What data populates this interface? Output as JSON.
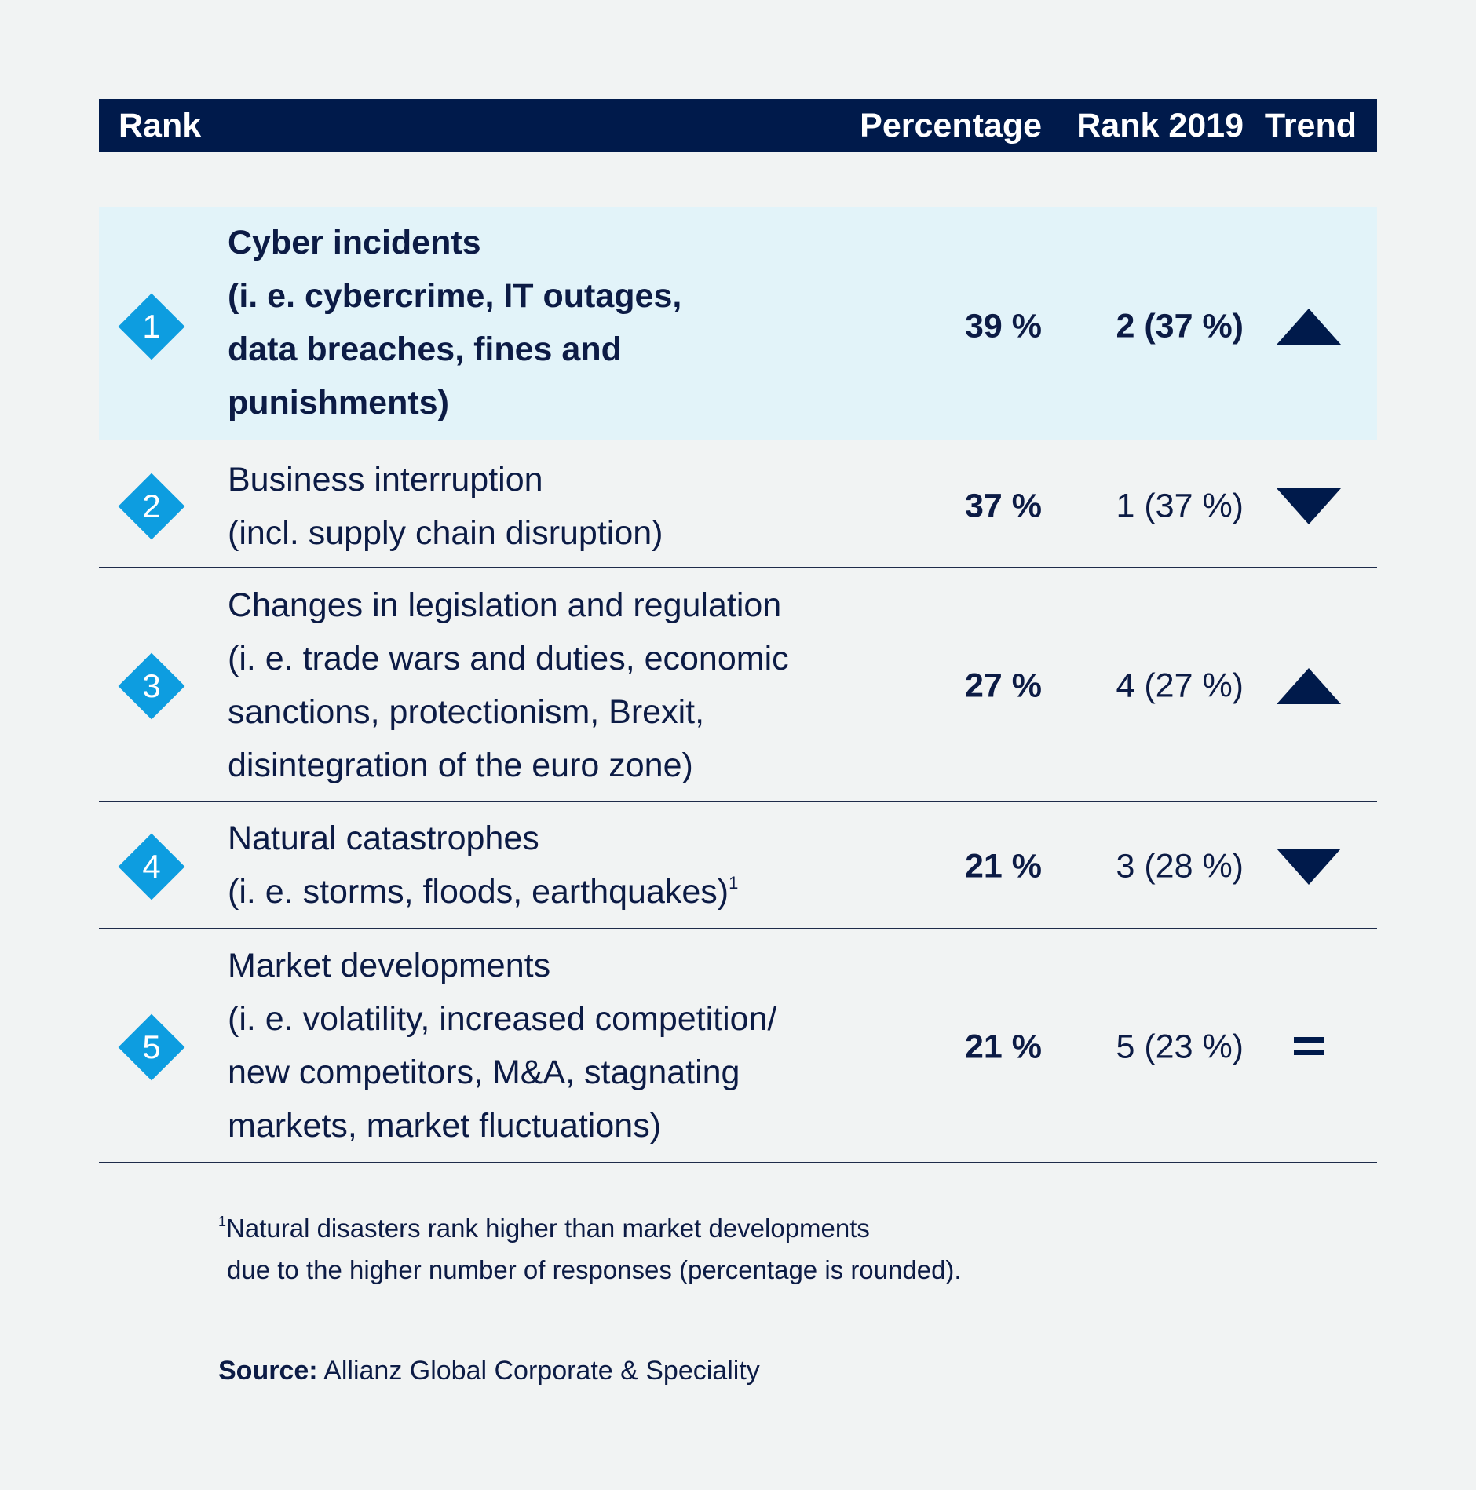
{
  "header": {
    "rank": "Rank",
    "percentage": "Percentage",
    "rank2019": "Rank 2019",
    "trend": "Trend"
  },
  "rows": [
    {
      "rank": "1",
      "lines": [
        "Cyber incidents",
        "(i. e. cybercrime, IT outages,",
        "data breaches, fines and",
        "punishments)"
      ],
      "percentage": "39 %",
      "rank2019": "2 (37 %)",
      "trend": "up-triangle-icon"
    },
    {
      "rank": "2",
      "lines": [
        "Business interruption",
        "(incl. supply chain disruption)"
      ],
      "percentage": "37 %",
      "rank2019": "1 (37 %)",
      "trend": "down-triangle-icon"
    },
    {
      "rank": "3",
      "lines": [
        "Changes in legislation and regulation",
        "(i. e. trade wars and duties, economic",
        "sanctions, protectionism, Brexit,",
        "disintegration of the euro zone)"
      ],
      "percentage": "27 %",
      "rank2019": "4 (27 %)",
      "trend": "up-triangle-icon"
    },
    {
      "rank": "4",
      "lines": [
        "Natural catastrophes",
        "(i. e. storms, floods, earthquakes)"
      ],
      "footnote_mark": "1",
      "percentage": "21 %",
      "rank2019": "3 (28 %)",
      "trend": "down-triangle-icon"
    },
    {
      "rank": "5",
      "lines": [
        "Market developments",
        "(i. e. volatility, increased competition/",
        "new competitors, M&A, stagnating",
        "markets, market fluctuations)"
      ],
      "percentage": "21 %",
      "rank2019": "5 (23 %)",
      "trend": "equals-icon"
    }
  ],
  "footnote": {
    "mark": "1",
    "line1": "Natural disasters rank higher than market developments",
    "line2": "due to the higher number of responses (percentage is rounded)."
  },
  "source": {
    "label": "Source:",
    "text": " Allianz Global Corporate & Speciality"
  },
  "colors": {
    "header_bg": "#001a4b",
    "highlight_bg": "#e2f3f9",
    "diamond": "#0d9de0",
    "text": "#0c1b45",
    "page_bg": "#f1f3f3"
  }
}
